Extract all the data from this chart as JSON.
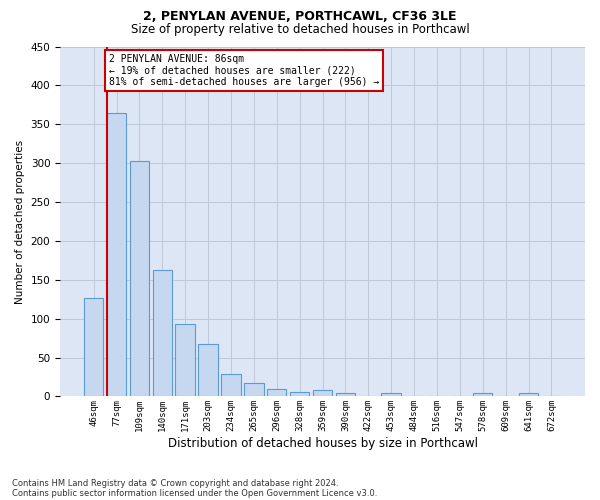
{
  "title1": "2, PENYLAN AVENUE, PORTHCAWL, CF36 3LE",
  "title2": "Size of property relative to detached houses in Porthcawl",
  "xlabel": "Distribution of detached houses by size in Porthcawl",
  "ylabel": "Number of detached properties",
  "categories": [
    "46sqm",
    "77sqm",
    "109sqm",
    "140sqm",
    "171sqm",
    "203sqm",
    "234sqm",
    "265sqm",
    "296sqm",
    "328sqm",
    "359sqm",
    "390sqm",
    "422sqm",
    "453sqm",
    "484sqm",
    "516sqm",
    "547sqm",
    "578sqm",
    "609sqm",
    "641sqm",
    "672sqm"
  ],
  "values": [
    127,
    365,
    303,
    163,
    93,
    67,
    29,
    17,
    9,
    6,
    8,
    4,
    1,
    4,
    1,
    0,
    0,
    4,
    0,
    4,
    0
  ],
  "bar_color": "#c5d8f0",
  "bar_edge_color": "#5b9bd5",
  "grid_color": "#c0c8d8",
  "background_color": "#dce6f5",
  "vline_color": "#cc0000",
  "annotation_text": "2 PENYLAN AVENUE: 86sqm\n← 19% of detached houses are smaller (222)\n81% of semi-detached houses are larger (956) →",
  "annotation_box_color": "#ffffff",
  "annotation_box_edge": "#cc0000",
  "ylim": [
    0,
    450
  ],
  "yticks": [
    0,
    50,
    100,
    150,
    200,
    250,
    300,
    350,
    400,
    450
  ],
  "footer1": "Contains HM Land Registry data © Crown copyright and database right 2024.",
  "footer2": "Contains public sector information licensed under the Open Government Licence v3.0."
}
